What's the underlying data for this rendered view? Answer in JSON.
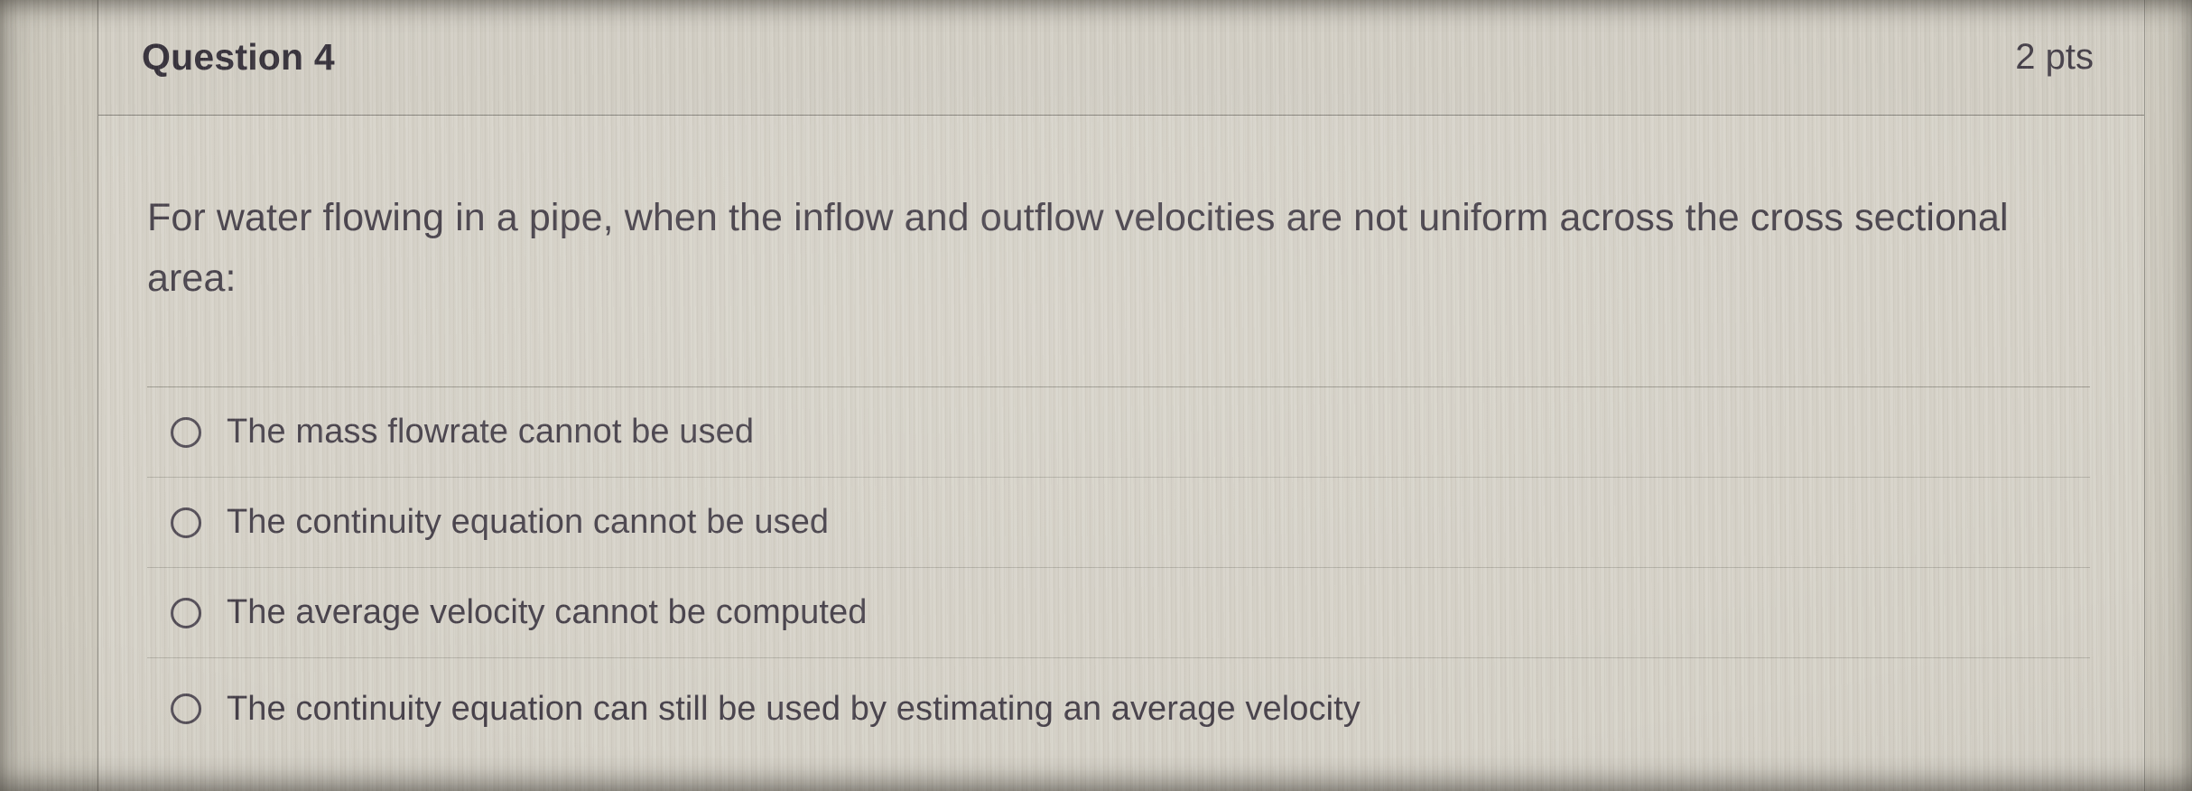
{
  "question": {
    "number_label": "Question 4",
    "points_label": "2 pts",
    "prompt": "For water flowing in a pipe, when the inflow and outflow velocities are not uniform across the cross sectional area:",
    "options": [
      {
        "label": "The mass flowrate cannot be used",
        "selected": false
      },
      {
        "label": "The continuity equation cannot be used",
        "selected": false
      },
      {
        "label": "The average velocity cannot be computed",
        "selected": false
      },
      {
        "label": "The continuity equation can still be used by estimating an average velocity",
        "selected": false
      }
    ]
  },
  "colors": {
    "page_background": "#cecabf",
    "card_background": "#d6d2c8",
    "header_background": "#d2cec4",
    "card_border": "#8f8c84",
    "header_divider": "#84817a",
    "options_top_divider": "#9b988e",
    "option_divider": "#b3b0a6",
    "title_color": "#332e38",
    "text_color": "#433d47",
    "radio_border": "#514b55"
  }
}
